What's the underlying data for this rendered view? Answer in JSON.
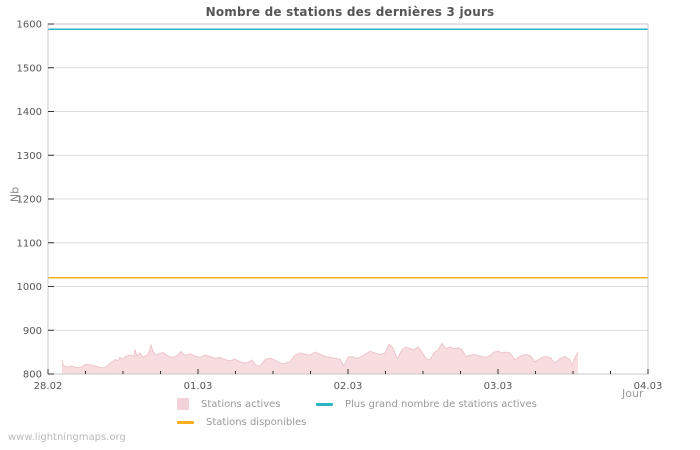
{
  "page": {
    "watermark": "www.lightningmaps.org"
  },
  "chart_data": {
    "type": "area",
    "title": "Nombre de stations des dernières 3 jours",
    "xlabel": "Jour",
    "ylabel": "Nb",
    "ylim": [
      800,
      1600
    ],
    "y_ticks": [
      800,
      900,
      1000,
      1100,
      1200,
      1300,
      1400,
      1500,
      1600
    ],
    "xlim_days": [
      0,
      4
    ],
    "x_ticks": [
      {
        "t": 0,
        "label": "28.02"
      },
      {
        "t": 1,
        "label": "01.03"
      },
      {
        "t": 2,
        "label": "02.03"
      },
      {
        "t": 3,
        "label": "03.03"
      },
      {
        "t": 4,
        "label": "04.03"
      }
    ],
    "minor_tick_days": 0.25,
    "grid": "horizontal",
    "colors": {
      "grid": "#dedede",
      "border": "#c8c8c8",
      "tick": "#333333",
      "text": "#555555",
      "muted": "#999999"
    },
    "series": [
      {
        "key": "stations-actives",
        "name": "Stations actives",
        "type": "area",
        "fill": "#f7dde0",
        "stroke": "#edc6cc",
        "points": [
          [
            0.093,
            833
          ],
          [
            0.1,
            820
          ],
          [
            0.127,
            816
          ],
          [
            0.16,
            818
          ],
          [
            0.193,
            814
          ],
          [
            0.227,
            817
          ],
          [
            0.253,
            822
          ],
          [
            0.28,
            821
          ],
          [
            0.313,
            818
          ],
          [
            0.347,
            815
          ],
          [
            0.373,
            814
          ],
          [
            0.4,
            820
          ],
          [
            0.42,
            826
          ],
          [
            0.447,
            833
          ],
          [
            0.467,
            830
          ],
          [
            0.48,
            838
          ],
          [
            0.5,
            834
          ],
          [
            0.52,
            841
          ],
          [
            0.553,
            843
          ],
          [
            0.573,
            840
          ],
          [
            0.58,
            856
          ],
          [
            0.593,
            841
          ],
          [
            0.613,
            848
          ],
          [
            0.633,
            838
          ],
          [
            0.667,
            845
          ],
          [
            0.687,
            866
          ],
          [
            0.7,
            851
          ],
          [
            0.72,
            843
          ],
          [
            0.747,
            847
          ],
          [
            0.767,
            849
          ],
          [
            0.793,
            843
          ],
          [
            0.82,
            838
          ],
          [
            0.853,
            840
          ],
          [
            0.887,
            851
          ],
          [
            0.913,
            842
          ],
          [
            0.947,
            846
          ],
          [
            0.98,
            841
          ],
          [
            1.013,
            838
          ],
          [
            1.047,
            843
          ],
          [
            1.08,
            840
          ],
          [
            1.113,
            836
          ],
          [
            1.147,
            838
          ],
          [
            1.18,
            833
          ],
          [
            1.213,
            830
          ],
          [
            1.247,
            834
          ],
          [
            1.28,
            828
          ],
          [
            1.313,
            825
          ],
          [
            1.34,
            828
          ],
          [
            1.36,
            832
          ],
          [
            1.387,
            820
          ],
          [
            1.413,
            818
          ],
          [
            1.447,
            833
          ],
          [
            1.48,
            836
          ],
          [
            1.513,
            832
          ],
          [
            1.547,
            825
          ],
          [
            1.58,
            824
          ],
          [
            1.613,
            828
          ],
          [
            1.647,
            843
          ],
          [
            1.68,
            848
          ],
          [
            1.713,
            845
          ],
          [
            1.747,
            843
          ],
          [
            1.78,
            850
          ],
          [
            1.813,
            845
          ],
          [
            1.847,
            840
          ],
          [
            1.88,
            838
          ],
          [
            1.913,
            836
          ],
          [
            1.947,
            834
          ],
          [
            1.973,
            818
          ],
          [
            2.0,
            838
          ],
          [
            2.027,
            840
          ],
          [
            2.053,
            836
          ],
          [
            2.08,
            838
          ],
          [
            2.113,
            845
          ],
          [
            2.147,
            852
          ],
          [
            2.18,
            848
          ],
          [
            2.213,
            845
          ],
          [
            2.247,
            848
          ],
          [
            2.273,
            868
          ],
          [
            2.3,
            860
          ],
          [
            2.327,
            835
          ],
          [
            2.36,
            855
          ],
          [
            2.387,
            862
          ],
          [
            2.413,
            858
          ],
          [
            2.44,
            855
          ],
          [
            2.467,
            862
          ],
          [
            2.493,
            850
          ],
          [
            2.52,
            835
          ],
          [
            2.547,
            832
          ],
          [
            2.573,
            848
          ],
          [
            2.6,
            855
          ],
          [
            2.627,
            870
          ],
          [
            2.653,
            858
          ],
          [
            2.68,
            862
          ],
          [
            2.707,
            858
          ],
          [
            2.733,
            860
          ],
          [
            2.76,
            855
          ],
          [
            2.787,
            840
          ],
          [
            2.813,
            842
          ],
          [
            2.84,
            845
          ],
          [
            2.867,
            842
          ],
          [
            2.893,
            840
          ],
          [
            2.92,
            838
          ],
          [
            2.947,
            842
          ],
          [
            2.973,
            850
          ],
          [
            3.0,
            852
          ],
          [
            3.027,
            848
          ],
          [
            3.053,
            850
          ],
          [
            3.08,
            848
          ],
          [
            3.113,
            832
          ],
          [
            3.147,
            840
          ],
          [
            3.18,
            845
          ],
          [
            3.213,
            842
          ],
          [
            3.247,
            828
          ],
          [
            3.28,
            835
          ],
          [
            3.313,
            840
          ],
          [
            3.347,
            838
          ],
          [
            3.38,
            825
          ],
          [
            3.413,
            835
          ],
          [
            3.447,
            840
          ],
          [
            3.48,
            832
          ],
          [
            3.493,
            820
          ],
          [
            3.513,
            838
          ],
          [
            3.533,
            850
          ]
        ]
      },
      {
        "key": "plus-grand-nombre",
        "name": "Plus grand nombre de stations actives",
        "type": "hline",
        "color": "#2bb3c6",
        "value": 1588
      },
      {
        "key": "stations-disponibles",
        "name": "Stations disponibles",
        "type": "hline",
        "color": "#fcae1e",
        "value": 1020
      }
    ],
    "legend": {
      "position": "bottom-center",
      "items": [
        {
          "label": "Stations actives",
          "swatch": "square",
          "color": "#f3d3d9"
        },
        {
          "label": "Plus grand nombre de stations actives",
          "swatch": "line",
          "color": "#2bb3c6"
        },
        {
          "label": "Stations disponibles",
          "swatch": "line",
          "color": "#fcae1e"
        }
      ]
    }
  }
}
